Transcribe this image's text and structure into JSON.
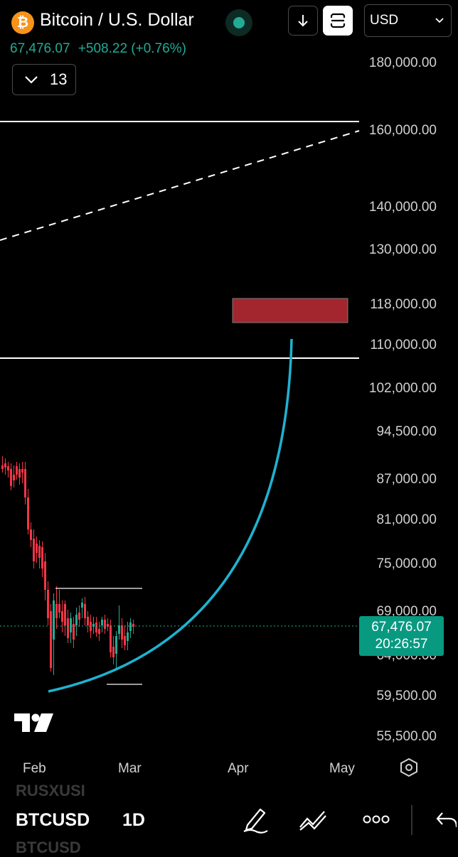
{
  "header": {
    "title": "Bitcoin / U.S. Dollar",
    "logo_glyph": "₿",
    "price": "67,476.07",
    "change": "+508.22 (+0.76%)",
    "interval_count": "13",
    "currency": "USD"
  },
  "price_axis": {
    "ticks": [
      "180,000.00",
      "160,000.00",
      "140,000.00",
      "130,000.00",
      "118,000.00",
      "110,000.00",
      "102,000.00",
      "94,500.00",
      "87,000.00",
      "81,000.00",
      "75,000.00",
      "69,000.00",
      "64,000.00",
      "59,500.00",
      "55,500.00"
    ],
    "current_price": "67,476.07",
    "countdown": "20:26:57"
  },
  "time_axis": {
    "ticks": [
      "Feb",
      "Mar",
      "Apr",
      "May"
    ]
  },
  "bottom_bar": {
    "symbol": "BTCUSD",
    "timeframe": "1D",
    "ghost_top": "RUSXUSI",
    "ghost_bottom": "BTCUSD"
  },
  "icons": [
    "bitcoin-logo",
    "live-status-dot",
    "arrow-down-icon",
    "layout-icon",
    "chevron-down-icon",
    "tradingview-logo",
    "settings-hex-icon",
    "pencil-icon",
    "trendline-icon",
    "more-icon",
    "undo-icon"
  ],
  "colors": {
    "background": "#000000",
    "up": "#22ab94",
    "down": "#f23645",
    "curve": "#1fb2d0",
    "target_zone": "#a3262f",
    "price_tag": "#089981"
  }
}
